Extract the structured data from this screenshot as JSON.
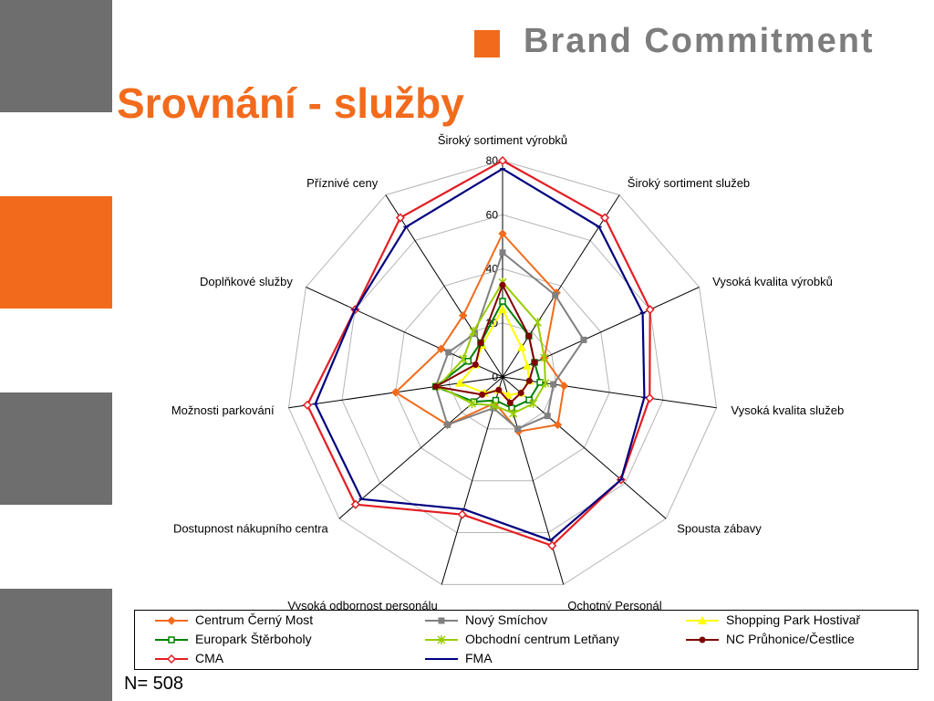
{
  "header": {
    "brand_text": "Brand Commitment",
    "title": "Srovnání - služby",
    "accent_color": "#f26b1d",
    "side_gray": "#6e6e6e",
    "side_orange": "#f26b1d"
  },
  "footer": {
    "sample_size": "N= 508"
  },
  "chart_data": {
    "type": "radar",
    "title": "",
    "axes": [
      "Široký sortiment výrobků",
      "Široký sortiment služeb",
      "Vysoká kvalita výrobků",
      "Vysoká kvalita služeb",
      "Spousta zábavy",
      "Ochotný Personál",
      "Vysoká odbornost personálu",
      "Dostupnost nákupního centra",
      "Možnosti parkování",
      "Doplňkové služby",
      "Příznivé ceny"
    ],
    "range": [
      0,
      80
    ],
    "ticks": [
      0,
      20,
      40,
      60,
      80
    ],
    "grid": true,
    "legend_position": "bottom",
    "series": [
      {
        "name": "Centrum  Černý Most",
        "color": "#f26b1d",
        "marker": "diamond",
        "values": [
          53,
          37,
          17,
          23,
          27,
          21,
          10,
          27,
          40,
          25,
          27
        ]
      },
      {
        "name": "Nový Smíchov",
        "color": "#808080",
        "marker": "square",
        "values": [
          46,
          36,
          33,
          19,
          22,
          20,
          12,
          27,
          25,
          22,
          19
        ]
      },
      {
        "name": "Shopping Park Hostivař",
        "color": "#ffff00",
        "marker": "triangle",
        "values": [
          25,
          13,
          10,
          10,
          9,
          7,
          5,
          9,
          16,
          11,
          14
        ]
      },
      {
        "name": "Europark Štěrboholy",
        "color": "#008000",
        "marker": "square-open",
        "values": [
          28,
          18,
          13,
          14,
          13,
          12,
          9,
          14,
          25,
          14,
          15
        ]
      },
      {
        "name": "Obchodní centrum Letňany",
        "color": "#99cc00",
        "marker": "star",
        "values": [
          35,
          24,
          17,
          16,
          15,
          14,
          11,
          15,
          24,
          16,
          20
        ]
      },
      {
        "name": "NC Průhonice/Čestlice",
        "color": "#800000",
        "marker": "circle",
        "values": [
          34,
          18,
          13,
          10,
          9,
          10,
          5,
          10,
          25,
          11,
          15
        ]
      },
      {
        "name": "CMA",
        "color": "#e31e24",
        "marker": "diamond-open",
        "values": [
          80,
          70,
          60,
          55,
          58,
          65,
          53,
          72,
          73,
          60,
          70
        ]
      },
      {
        "name": "FMA",
        "color": "#00007f",
        "marker": "dash",
        "values": [
          77,
          66,
          57,
          53,
          58,
          63,
          51,
          69,
          70,
          60,
          66
        ]
      }
    ]
  }
}
